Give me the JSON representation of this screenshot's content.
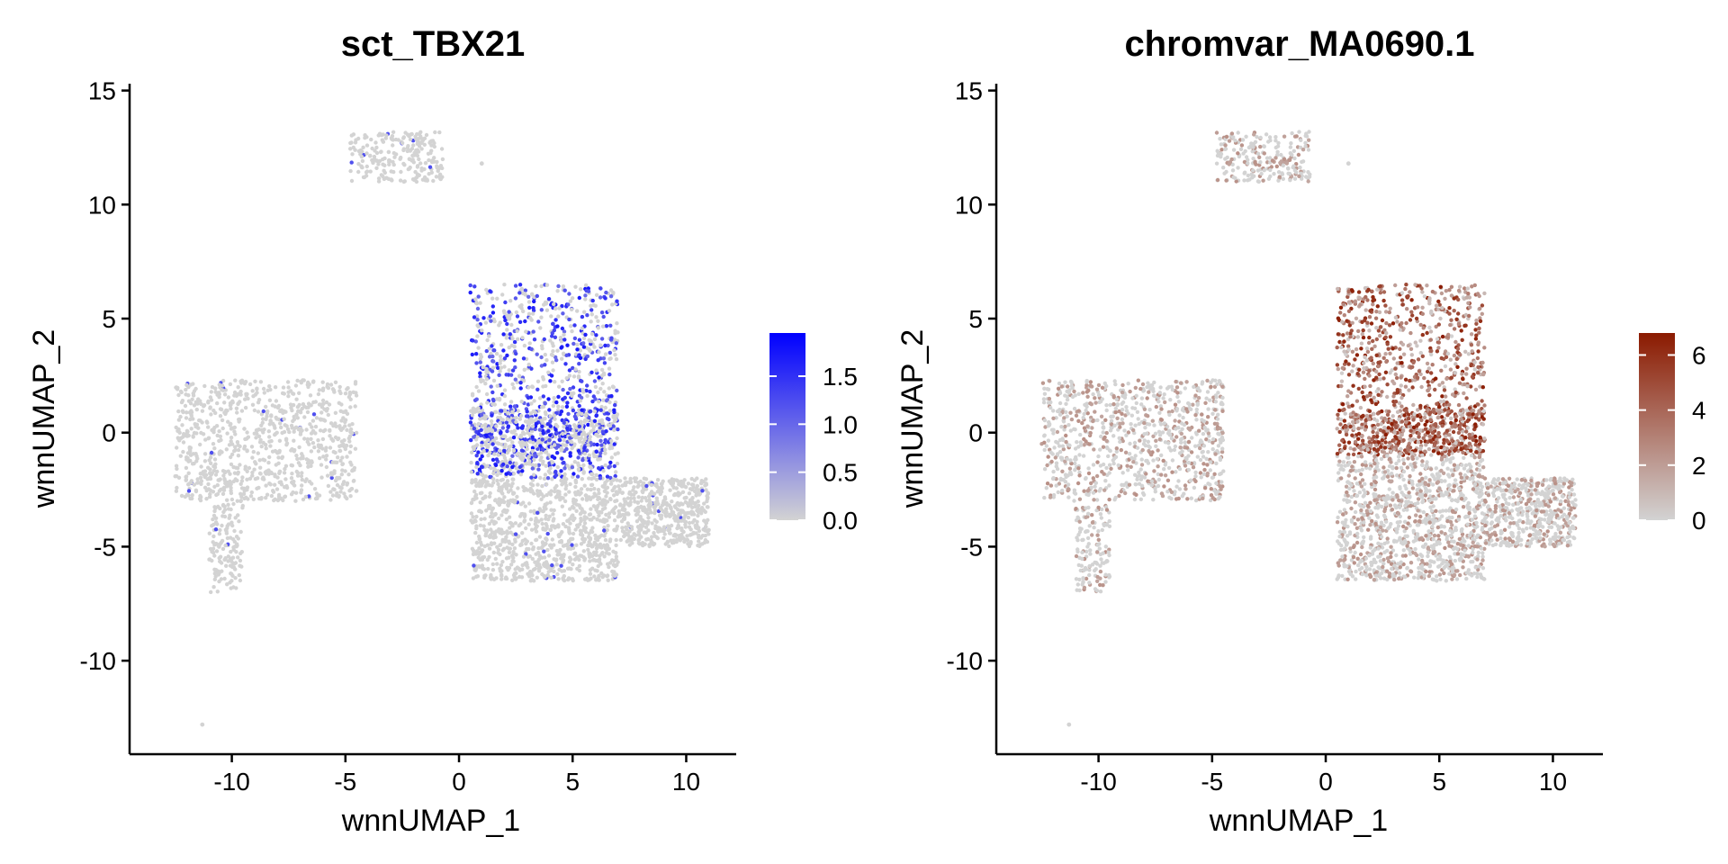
{
  "chart_data": [
    {
      "type": "scatter",
      "title": "sct_TBX21",
      "xlabel": "wnnUMAP_1",
      "ylabel": "wnnUMAP_2",
      "xlim": [
        -14.5,
        12.2
      ],
      "ylim": [
        -14.1,
        15.3
      ],
      "xticks": [
        -10,
        -5,
        0,
        5,
        10
      ],
      "yticks": [
        15,
        10,
        5,
        0,
        -5,
        -10
      ],
      "xtick_labels": [
        "-10",
        "-5",
        "0",
        "5",
        "10"
      ],
      "ytick_labels": [
        "15",
        "10",
        "5",
        "0",
        "-5",
        "-10"
      ],
      "grid": false,
      "legend": {
        "position": "right",
        "type": "colorbar",
        "low_color": "#d3d3d3",
        "high_color": "#0000ff",
        "range": [
          0,
          1.95
        ],
        "ticks": [
          0.0,
          0.5,
          1.0,
          1.5
        ],
        "tick_labels": [
          "0.0",
          "0.5",
          "1.0",
          "1.5"
        ]
      },
      "clusters": [
        {
          "name": "top",
          "x_range": [
            -4.8,
            -0.7
          ],
          "y_range": [
            11,
            13.2
          ]
        },
        {
          "name": "left",
          "x_range": [
            -12.5,
            -4.5
          ],
          "y_range": [
            -3,
            2.3
          ]
        },
        {
          "name": "left-tail",
          "x_range": [
            -11,
            -9.5
          ],
          "y_range": [
            -7,
            -3
          ]
        },
        {
          "name": "mid-upper",
          "x_range": [
            0.5,
            7
          ],
          "y_range": [
            -1,
            6.5
          ]
        },
        {
          "name": "mid-lower",
          "x_range": [
            0.5,
            7
          ],
          "y_range": [
            -6.5,
            1
          ]
        },
        {
          "name": "right",
          "x_range": [
            7,
            11
          ],
          "y_range": [
            -5,
            -2
          ]
        }
      ],
      "high_expression_region": {
        "x_range": [
          0.5,
          7
        ],
        "y_range": [
          -2,
          6.5
        ],
        "max_value": 1.9
      }
    },
    {
      "type": "scatter",
      "title": "chromvar_MA0690.1",
      "xlabel": "wnnUMAP_1",
      "ylabel": "wnnUMAP_2",
      "xlim": [
        -14.5,
        12.2
      ],
      "ylim": [
        -14.1,
        15.3
      ],
      "xticks": [
        -10,
        -5,
        0,
        5,
        10
      ],
      "yticks": [
        15,
        10,
        5,
        0,
        -5,
        -10
      ],
      "xtick_labels": [
        "-10",
        "-5",
        "0",
        "5",
        "10"
      ],
      "ytick_labels": [
        "15",
        "10",
        "5",
        "0",
        "-5",
        "-10"
      ],
      "grid": false,
      "legend": {
        "position": "right",
        "type": "colorbar",
        "low_color": "#d3d3d3",
        "high_color": "#8b1a00",
        "range": [
          0,
          6.8
        ],
        "ticks": [
          0,
          2,
          4,
          6
        ],
        "tick_labels": [
          "0",
          "2",
          "4",
          "6"
        ]
      },
      "clusters": [
        {
          "name": "top",
          "x_range": [
            -4.8,
            -0.7
          ],
          "y_range": [
            11,
            13.2
          ]
        },
        {
          "name": "left",
          "x_range": [
            -12.5,
            -4.5
          ],
          "y_range": [
            -3,
            2.3
          ]
        },
        {
          "name": "left-tail",
          "x_range": [
            -11,
            -9.5
          ],
          "y_range": [
            -7,
            -3
          ]
        },
        {
          "name": "mid-upper",
          "x_range": [
            0.5,
            7
          ],
          "y_range": [
            -1,
            6.5
          ]
        },
        {
          "name": "mid-lower",
          "x_range": [
            0.5,
            7
          ],
          "y_range": [
            -6.5,
            1
          ]
        },
        {
          "name": "right",
          "x_range": [
            7,
            11
          ],
          "y_range": [
            -5,
            -2
          ]
        }
      ],
      "high_expression_region": {
        "x_range": [
          0.5,
          7
        ],
        "y_range": [
          -1,
          6.5
        ],
        "max_value": 6.8
      }
    }
  ]
}
